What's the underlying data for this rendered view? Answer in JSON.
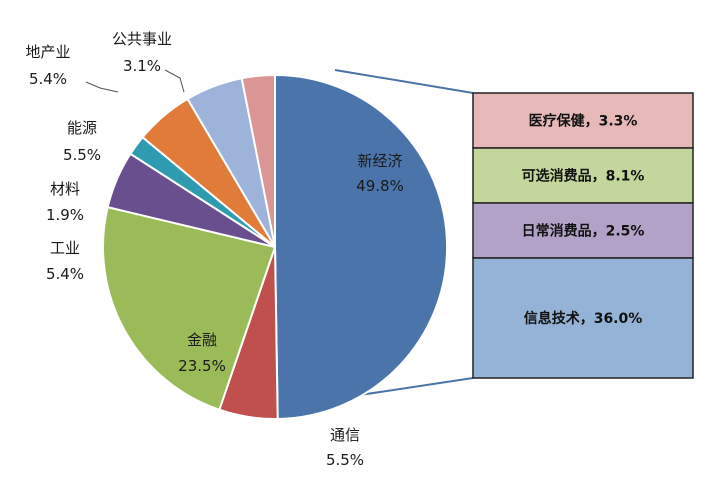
{
  "chart_data": {
    "type": "pie",
    "title": "",
    "slices": [
      {
        "name": "新经济",
        "value": 49.8,
        "value_label": "49.8%",
        "color": "#4a74aa"
      },
      {
        "name": "通信",
        "value": 5.5,
        "value_label": "5.5%",
        "color": "#c0504d"
      },
      {
        "name": "金融",
        "value": 23.5,
        "value_label": "23.5%",
        "color": "#9bbb59"
      },
      {
        "name": "工业",
        "value": 5.4,
        "value_label": "5.4%",
        "color": "#6a4f8e"
      },
      {
        "name": "材料",
        "value": 1.9,
        "value_label": "1.9%",
        "color": "#2f9bb0"
      },
      {
        "name": "能源",
        "value": 5.5,
        "value_label": "5.5%",
        "color": "#e07b39"
      },
      {
        "name": "地产业",
        "value": 5.4,
        "value_label": "5.4%",
        "color": "#9db3da"
      },
      {
        "name": "公共事业",
        "value": 3.1,
        "value_label": "3.1%",
        "color": "#d99694"
      }
    ],
    "breakdown_of": "新经济",
    "breakdown": [
      {
        "label": "医疗保健，3.3%",
        "value": 3.3,
        "color": "#e6b9b8"
      },
      {
        "label": "可选消费品，8.1%",
        "value": 8.1,
        "color": "#c3d69b"
      },
      {
        "label": "日常消费品，2.5%",
        "value": 2.5,
        "color": "#b3a2c7"
      },
      {
        "label": "信息技术，36.0%",
        "value": 36.0,
        "color": "#95b3d7"
      }
    ],
    "connector_color": "#4a74aa"
  }
}
